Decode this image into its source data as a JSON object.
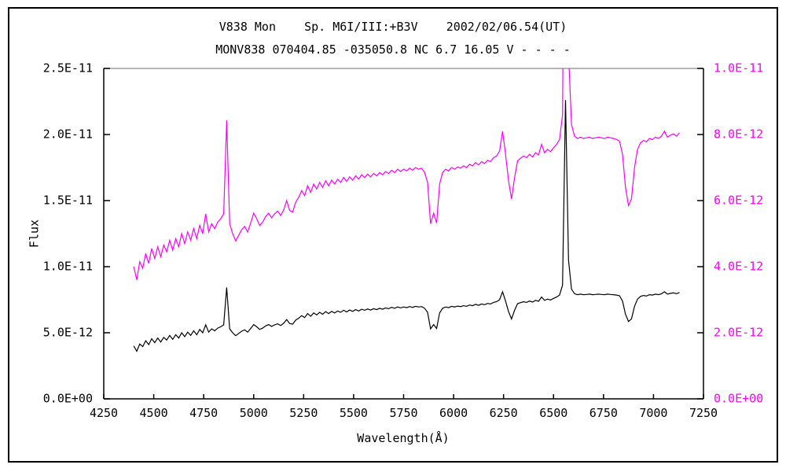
{
  "window": {
    "background": "#ffffff",
    "border_color": "#000000"
  },
  "figure": {
    "title_line1": "V838 Mon    Sp. M6I/III:+B3V    2002/02/06.54(UT)",
    "title_line2": "MONV838 070404.85 -035050.8 NC 6.7 16.05 V - - - -",
    "x_axis_label": "Wavelength(Å)",
    "y_axis_label": "Flux"
  },
  "colors": {
    "left_series": "#000000",
    "right_series": "#ff00ff",
    "frame": "#000000",
    "frame_top": "#9e9e9e",
    "left_tick_text": "#000000",
    "x_tick_text": "#000000",
    "right_tick_text": "#ff00ff"
  },
  "chart_data": {
    "type": "line",
    "title": "V838 Mon    Sp. M6I/III:+B3V    2002/02/06.54(UT)",
    "subtitle": "MONV838 070404.85 -035050.8 NC 6.7 16.05 V - - - -",
    "xlabel": "Wavelength(Å)",
    "ylabel": "Flux",
    "grid": false,
    "legend": false,
    "x_range": [
      4250,
      7250
    ],
    "x_tick_labels": [
      "4250",
      "4500",
      "4750",
      "5000",
      "5250",
      "5500",
      "5750",
      "6000",
      "6250",
      "6500",
      "6750",
      "7000",
      "7250"
    ],
    "y_left_range": [
      0,
      2.5e-11
    ],
    "y_left_tick_labels": [
      "0.0E+00",
      "5.0E-12",
      "1.0E-11",
      "1.5E-11",
      "2.0E-11",
      "2.5E-11"
    ],
    "y_right_range": [
      0,
      1e-11
    ],
    "y_right_tick_labels": [
      "0.0E+00",
      "2.0E-12",
      "4.0E-12",
      "6.0E-12",
      "8.0E-12",
      "1.0E-11"
    ],
    "series": [
      {
        "name": "spectrum-on-left-flux-scale",
        "color": "#000000",
        "y_axis": "left"
      },
      {
        "name": "spectrum-on-right-flux-scale",
        "color": "#ff00ff",
        "y_axis": "right"
      }
    ],
    "x_start": 4400,
    "x_step": 15,
    "flux_unit_scale": 1e-12,
    "flux": [
      4.0,
      3.6,
      4.15,
      3.95,
      4.4,
      4.1,
      4.55,
      4.25,
      4.6,
      4.3,
      4.65,
      4.45,
      4.8,
      4.5,
      4.85,
      4.6,
      5.0,
      4.7,
      5.05,
      4.8,
      5.15,
      4.85,
      5.25,
      5.0,
      5.6,
      5.05,
      5.3,
      5.15,
      5.35,
      5.45,
      5.6,
      8.43,
      5.3,
      5.0,
      4.78,
      4.95,
      5.12,
      5.22,
      5.05,
      5.32,
      5.62,
      5.45,
      5.25,
      5.35,
      5.52,
      5.62,
      5.48,
      5.6,
      5.68,
      5.55,
      5.72,
      6.0,
      5.7,
      5.65,
      5.95,
      6.1,
      6.3,
      6.15,
      6.45,
      6.25,
      6.5,
      6.35,
      6.55,
      6.4,
      6.6,
      6.45,
      6.62,
      6.5,
      6.65,
      6.55,
      6.7,
      6.58,
      6.72,
      6.62,
      6.75,
      6.65,
      6.78,
      6.7,
      6.8,
      6.72,
      6.82,
      6.75,
      6.85,
      6.78,
      6.88,
      6.82,
      6.92,
      6.85,
      6.95,
      6.88,
      6.95,
      6.9,
      6.98,
      6.92,
      7.0,
      6.95,
      6.98,
      6.85,
      6.55,
      5.3,
      5.62,
      5.32,
      6.5,
      6.85,
      6.95,
      6.9,
      7.0,
      6.95,
      7.02,
      6.98,
      7.05,
      7.0,
      7.1,
      7.05,
      7.15,
      7.08,
      7.18,
      7.12,
      7.22,
      7.18,
      7.3,
      7.35,
      7.5,
      8.1,
      7.4,
      6.6,
      6.05,
      6.7,
      7.2,
      7.28,
      7.35,
      7.3,
      7.4,
      7.32,
      7.45,
      7.38,
      7.7,
      7.45,
      7.55,
      7.48,
      7.6,
      7.7,
      7.85,
      8.6,
      22.6,
      10.5,
      8.3,
      7.95,
      7.88,
      7.92,
      7.88,
      7.9,
      7.92,
      7.88,
      7.9,
      7.92,
      7.9,
      7.88,
      7.92,
      7.9,
      7.88,
      7.85,
      7.8,
      7.4,
      6.4,
      5.85,
      6.05,
      7.0,
      7.55,
      7.75,
      7.82,
      7.78,
      7.88,
      7.85,
      7.92,
      7.88,
      7.95,
      8.1,
      7.92,
      7.98,
      8.02,
      7.95,
      8.05
    ]
  }
}
